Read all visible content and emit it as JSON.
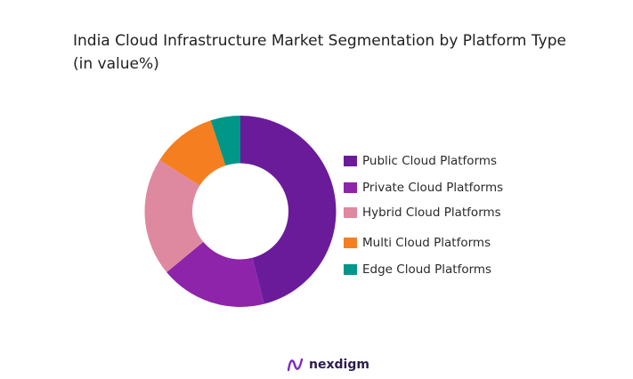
{
  "chart_data": {
    "type": "pie",
    "title": "India Cloud Infrastructure Market Segmentation by Platform Type (in value%)",
    "legend_position": "right",
    "donut": true,
    "series": [
      {
        "name": "Public Cloud Platforms",
        "value": 46,
        "color": "#6a1b9a"
      },
      {
        "name": "Private Cloud Platforms",
        "value": 18,
        "color": "#8e24aa"
      },
      {
        "name": "Hybrid Cloud Platforms",
        "value": 20,
        "color": "#de89a0"
      },
      {
        "name": "Multi Cloud Platforms",
        "value": 11,
        "color": "#f57f20"
      },
      {
        "name": "Edge Cloud Platforms",
        "value": 5,
        "color": "#009688"
      }
    ]
  },
  "logo": {
    "text": "nexdigm",
    "color": "#7b2cbf"
  }
}
